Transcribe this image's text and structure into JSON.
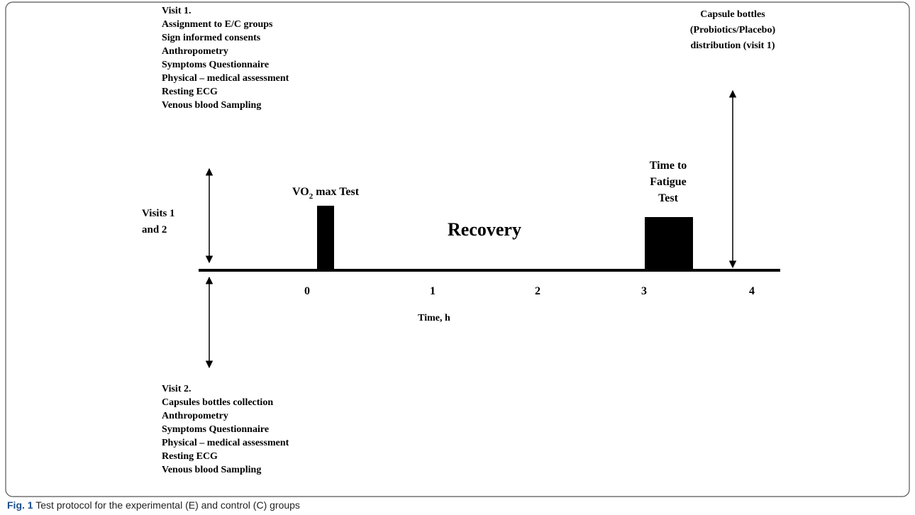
{
  "visit1": {
    "title": "Visit 1.",
    "items": [
      "Assignment to E/C groups",
      "Sign informed consents",
      "Anthropometry",
      "Symptoms Questionnaire",
      "Physical – medical assessment",
      "Resting ECG",
      "Venous blood Sampling"
    ]
  },
  "visit2": {
    "title": "Visit 2.",
    "items": [
      "Capsules bottles collection",
      "Anthropometry",
      "Symptoms Questionnaire",
      "Physical – medical assessment",
      "Resting ECG",
      "Venous blood Sampling"
    ]
  },
  "visits_label": [
    "Visits 1",
    "and 2"
  ],
  "capsule_label": [
    "Capsule bottles",
    "(Probiotics/Placebo)",
    "distribution (visit 1)"
  ],
  "vo2_label": {
    "main": "VO",
    "sub": "2",
    "rest": " max Test"
  },
  "fatigue_label": [
    "Time to",
    "Fatigue",
    "Test"
  ],
  "recovery_label": "Recovery",
  "axis": {
    "ticks": [
      "0",
      "1",
      "2",
      "3",
      "4"
    ],
    "title": "Time, h"
  },
  "caption": {
    "label": "Fig. 1",
    "text": " Test protocol for the experimental (E) and control (C) groups"
  }
}
